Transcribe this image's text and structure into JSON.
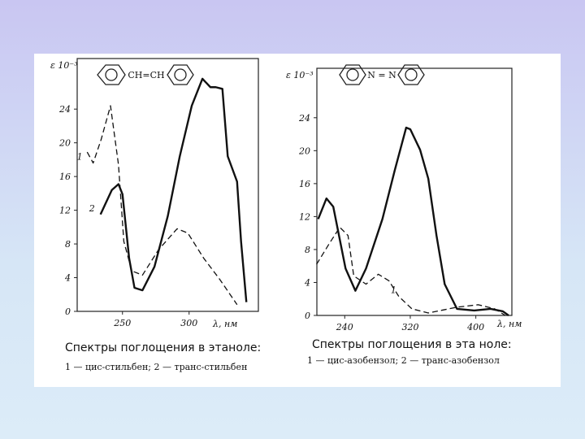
{
  "chart_data": [
    {
      "type": "line",
      "y_label": "ε 10⁻³",
      "x_label": "λ, нм",
      "structure": "CH=CH",
      "caption": "Спектры поглощения в этаноле:",
      "legend_text": "1 — цис-стильбен;   2 — транс-стильбен",
      "xlim": [
        216,
        352
      ],
      "ylim": [
        0,
        30
      ],
      "xticks": [
        250,
        300
      ],
      "yticks": [
        0,
        4,
        8,
        12,
        16,
        20,
        24
      ],
      "series": [
        {
          "name": "1",
          "color": "#111111",
          "style": "dashed",
          "x": [
            223.5,
            228,
            234,
            241,
            247,
            251,
            257,
            265,
            277,
            291,
            299,
            311,
            323,
            336
          ],
          "values": [
            18.9,
            17.6,
            20.4,
            24.4,
            17.4,
            8.3,
            4.8,
            4.3,
            7.3,
            9.8,
            9.3,
            6.3,
            3.8,
            0.8
          ]
        },
        {
          "name": "2",
          "color": "#111111",
          "style": "solid",
          "x": [
            233.5,
            242,
            247,
            250,
            255,
            259,
            265,
            274,
            284,
            293,
            302,
            310,
            316,
            320,
            325,
            329,
            336,
            339,
            343
          ],
          "values": [
            11.5,
            14.4,
            15.1,
            13.9,
            6.3,
            2.8,
            2.5,
            5.3,
            11.3,
            18.4,
            24.4,
            27.6,
            26.6,
            26.6,
            26.4,
            18.4,
            15.4,
            8.3,
            1.1
          ]
        }
      ]
    },
    {
      "type": "line",
      "y_label": "ε 10⁻³",
      "x_label": "λ, нм",
      "structure": "N = N",
      "caption": "Спектры поглощения в эта ноле:",
      "legend_text": "1 — цис-азобензол;  2 — транс-азобензол",
      "xlim": [
        206,
        444
      ],
      "ylim": [
        0,
        30
      ],
      "xticks": [
        240,
        320,
        400
      ],
      "yticks": [
        0,
        4,
        8,
        12,
        16,
        20,
        24
      ],
      "series": [
        {
          "name": "1",
          "color": "#111111",
          "style": "dashed",
          "x": [
            205.6,
            221,
            234,
            244,
            251,
            266,
            281,
            294,
            306,
            322,
            342,
            377,
            403,
            423,
            436
          ],
          "values": [
            6.2,
            8.7,
            10.7,
            9.7,
            4.8,
            3.8,
            5.0,
            4.2,
            2.3,
            0.8,
            0.3,
            1.0,
            1.3,
            0.8,
            0
          ]
        },
        {
          "color": "#111111",
          "style": "solid",
          "x": [
            207.6,
            217.7,
            226,
            241,
            253,
            266,
            286,
            301,
            315,
            320,
            332,
            342,
            352,
            362,
            377,
            398,
            418,
            433,
            440
          ],
          "values": [
            11.7,
            14.2,
            13.2,
            5.7,
            3.0,
            5.7,
            11.7,
            17.6,
            22.8,
            22.6,
            20.1,
            16.6,
            9.7,
            3.8,
            0.8,
            0.6,
            0.8,
            0.5,
            0
          ]
        }
      ]
    }
  ]
}
